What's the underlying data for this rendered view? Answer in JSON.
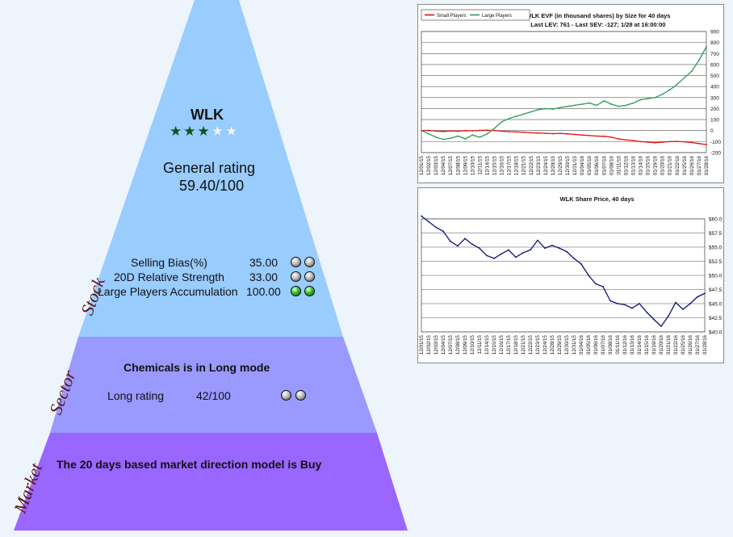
{
  "pyramid": {
    "ticker": "WLK",
    "stars": {
      "filled": 3,
      "total": 5
    },
    "general_rating_label": "General rating",
    "general_rating_value": "59.40/100",
    "stock_label": "Stock",
    "sector_label": "Sector",
    "market_label": "Market",
    "stock_metrics": [
      {
        "label": "Selling Bias(%)",
        "value": "35.00",
        "lights": [
          "grey",
          "grey"
        ]
      },
      {
        "label": "20D Relative Strength",
        "value": "33.00",
        "lights": [
          "grey",
          "grey"
        ]
      },
      {
        "label": "Large Players Accumulation",
        "value": "100.00",
        "lights": [
          "green",
          "green"
        ]
      }
    ],
    "sector_title": "Chemicals is in Long mode",
    "sector_long_label": "Long rating",
    "sector_long_value": "42/100",
    "sector_lights": [
      "grey",
      "grey"
    ],
    "market_title": "The 20 days based market direction model is Buy",
    "colors": {
      "stock": "#99ccff",
      "sector": "#9999ff",
      "market": "#9966ff"
    }
  },
  "chart_data": [
    {
      "type": "line",
      "title": "WLK EVF (in thousand shares) by Size for 40 days",
      "subtitle": "Last LEV: 761 - Last SEV: -127; 1/28 at 16:00:00",
      "ylim": [
        -200,
        900
      ],
      "yticks": [
        -200,
        -100,
        0,
        100,
        200,
        300,
        400,
        500,
        600,
        700,
        800,
        900
      ],
      "ytick_labels": [
        "-200",
        "-100",
        "0",
        "100",
        "200",
        "300",
        "400",
        "500",
        "600",
        "700",
        "800",
        "900"
      ],
      "grid": true,
      "legend": "top-left",
      "x_labels": [
        "12/01/15",
        "12/02/15",
        "12/03/15",
        "12/04/15",
        "12/07/15",
        "12/08/15",
        "12/09/15",
        "12/10/15",
        "12/11/15",
        "12/14/15",
        "12/15/15",
        "12/16/15",
        "12/17/15",
        "12/18/15",
        "12/21/15",
        "12/22/15",
        "12/23/15",
        "12/24/15",
        "12/28/15",
        "12/29/15",
        "12/30/15",
        "12/31/15",
        "01/04/16",
        "01/05/16",
        "01/06/16",
        "01/07/16",
        "01/08/16",
        "01/11/16",
        "01/12/16",
        "01/13/16",
        "01/14/16",
        "01/15/16",
        "01/19/16",
        "01/20/16",
        "01/21/16",
        "01/22/16",
        "01/25/16",
        "01/26/16",
        "01/27/16",
        "01/28/16"
      ],
      "series": [
        {
          "name": "Small Players",
          "color": "#dd1111",
          "values": [
            0,
            2,
            -5,
            -8,
            -3,
            -6,
            0,
            -2,
            2,
            3,
            0,
            -5,
            -10,
            -12,
            -15,
            -20,
            -22,
            -25,
            -28,
            -25,
            -30,
            -35,
            -40,
            -45,
            -50,
            -52,
            -60,
            -75,
            -85,
            -90,
            -100,
            -105,
            -110,
            -105,
            -100,
            -98,
            -102,
            -108,
            -118,
            -127
          ]
        },
        {
          "name": "Large Players",
          "color": "#2a9a5a",
          "values": [
            0,
            -30,
            -60,
            -80,
            -70,
            -50,
            -75,
            -40,
            -60,
            -30,
            20,
            80,
            110,
            130,
            150,
            170,
            190,
            200,
            195,
            210,
            220,
            230,
            240,
            250,
            230,
            270,
            240,
            220,
            230,
            250,
            280,
            290,
            300,
            330,
            370,
            420,
            480,
            540,
            640,
            761
          ]
        }
      ]
    },
    {
      "type": "line",
      "title": "WLK Share Price, 40 days",
      "ylim": [
        40,
        60
      ],
      "yticks": [
        40,
        42.5,
        45,
        47.5,
        50,
        52.5,
        55,
        57.5,
        60
      ],
      "ytick_labels": [
        "$40.0",
        "$42.5",
        "$45.0",
        "$47.5",
        "$50.0",
        "$52.5",
        "$55.0",
        "$57.5",
        "$60.0"
      ],
      "grid": true,
      "x_labels": [
        "12/01/15",
        "12/02/15",
        "12/03/15",
        "12/04/15",
        "12/07/15",
        "12/08/15",
        "12/09/15",
        "12/10/15",
        "12/11/15",
        "12/14/15",
        "12/15/15",
        "12/16/15",
        "12/17/15",
        "12/18/15",
        "12/21/15",
        "12/22/15",
        "12/23/15",
        "12/24/15",
        "12/28/15",
        "12/29/15",
        "12/30/15",
        "12/31/15",
        "01/04/16",
        "01/05/16",
        "01/06/16",
        "01/07/16",
        "01/08/16",
        "01/11/16",
        "01/12/16",
        "01/13/16",
        "01/14/16",
        "01/15/16",
        "01/19/16",
        "01/20/16",
        "01/21/16",
        "01/22/16",
        "01/25/16",
        "01/26/16",
        "01/27/16",
        "01/28/16"
      ],
      "series": [
        {
          "color": "#101080",
          "values": [
            60.5,
            59.5,
            58.5,
            57.8,
            56.0,
            55.2,
            56.5,
            55.5,
            54.8,
            53.5,
            53.0,
            53.8,
            54.5,
            53.2,
            54.0,
            54.5,
            56.2,
            54.8,
            55.3,
            54.8,
            54.2,
            53.0,
            52.0,
            50.0,
            48.5,
            48.0,
            45.5,
            45.0,
            44.8,
            44.2,
            45.0,
            43.5,
            42.2,
            41.0,
            42.8,
            45.2,
            44.0,
            45.0,
            46.2,
            46.8
          ]
        }
      ]
    }
  ]
}
